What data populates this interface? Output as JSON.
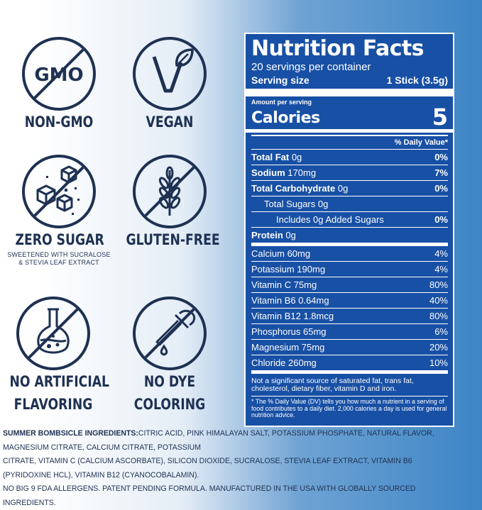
{
  "badges": {
    "gmo_text": "GMO",
    "non_gmo": "NON-GMO",
    "vegan": "VEGAN",
    "zero_sugar": "ZERO SUGAR",
    "zero_sugar_sub1": "SWEETENED WITH SUCRALOSE",
    "zero_sugar_sub2": "& STEVIA LEAF EXTRACT",
    "gluten_free": "GLUTEN-FREE",
    "no_artificial_1": "NO ARTIFICIAL",
    "no_artificial_2": "FLAVORING",
    "no_dye_1": "NO DYE",
    "no_dye_2": "COLORING"
  },
  "nutrition": {
    "title": "Nutrition Facts",
    "servings": "20 servings per container",
    "serving_size_label": "Serving size",
    "serving_size_value": "1 Stick (3.5g)",
    "amount_per_serving": "Amount per serving",
    "calories_label": "Calories",
    "calories_value": "5",
    "dv_header": "% Daily Value*",
    "rows": [
      {
        "label": "Total Fat",
        "amount": "0g",
        "pct": "0%"
      },
      {
        "label": "Sodium",
        "amount": "170mg",
        "pct": "7%"
      },
      {
        "label": "Total Carbohydrate",
        "amount": "0g",
        "pct": "0%"
      },
      {
        "label": "Total Sugars 0g",
        "amount": "",
        "pct": ""
      },
      {
        "label": "Includes 0g Added Sugars",
        "amount": "",
        "pct": "0%"
      },
      {
        "label": "Protein",
        "amount": "0g",
        "pct": ""
      }
    ],
    "vitamins": [
      {
        "label": "Calcium 60mg",
        "pct": "4%"
      },
      {
        "label": "Potassium 190mg",
        "pct": "4%"
      },
      {
        "label": "Vitamin C 75mg",
        "pct": "80%"
      },
      {
        "label": "Vitamin B6 0.64mg",
        "pct": "40%"
      },
      {
        "label": "Vitamin B12 1.8mcg",
        "pct": "80%"
      },
      {
        "label": "Phosphorus 65mg",
        "pct": "6%"
      },
      {
        "label": "Magnesium 75mg",
        "pct": "20%"
      },
      {
        "label": "Chloride 260mg",
        "pct": "10%"
      }
    ],
    "footnote1": "Not a significant source of saturated fat, trans fat, cholesterol, dietary fiber, vitamin D and iron.",
    "footnote2": "* The % Daily Value (DV) tells you how much a nutrient in a serving of food contributes to a daily diet. 2,000 calories a day is used for general nutrition advice."
  },
  "ingredients": {
    "lead": "SUMMER BOMBSICLE INGREDIENTS:",
    "line1": "CITRIC ACID, PINK HIMALAYAN SALT, POTASSIUM PHOSPHATE, NATURAL FLAVOR, MAGNESIUM CITRATE, CALCIUM CITRATE, POTASSIUM",
    "line2": "CITRATE, VITAMIN C (CALCIUM ASCORBATE), SILICON DIOXIDE, SUCRALOSE, STEVIA LEAF EXTRACT, VITAMIN B6 (PYRIDOXINE HCL), VITAMIN B12 (CYANOCOBALAMIN).",
    "line3": "NO BIG 9 FDA ALLERGENS. PATENT PENDING FORMULA. MANUFACTURED IN THE USA WITH GLOBALLY SOURCED INGREDIENTS."
  },
  "colors": {
    "navy": "#1e3152",
    "panel_blue": "#1850a5",
    "background_right": "#3d85c6"
  }
}
